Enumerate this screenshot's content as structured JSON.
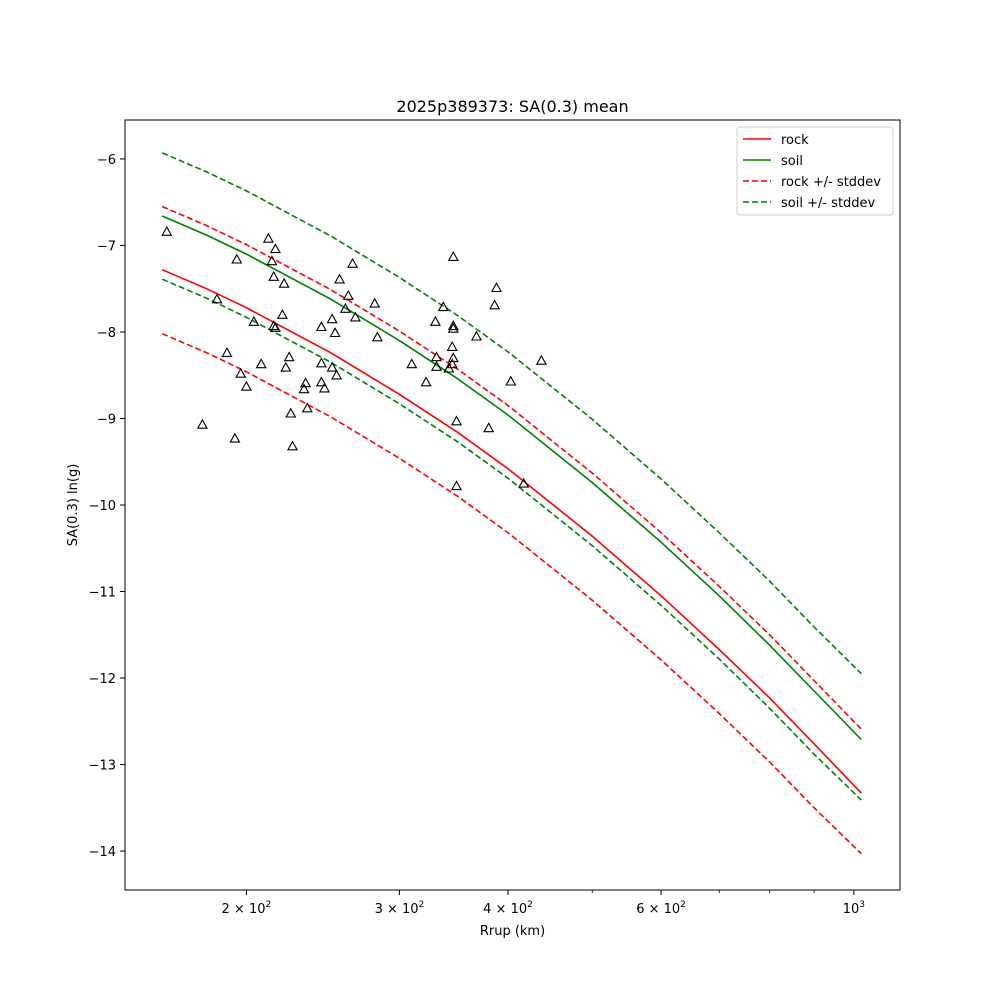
{
  "chart_data": {
    "type": "line",
    "title": "2025p389373: SA(0.3) mean",
    "xlabel": "Rrup (km)",
    "ylabel": "SA(0.3) ln(g)",
    "x_scale": "log",
    "xlim": [
      145,
      1130
    ],
    "ylim": [
      -14.45,
      -5.55
    ],
    "x_ticks": [
      {
        "value": 200,
        "base": "2 × 10",
        "exp": "2"
      },
      {
        "value": 300,
        "base": "3 × 10",
        "exp": "2"
      },
      {
        "value": 400,
        "base": "4 × 10",
        "exp": "2"
      },
      {
        "value": 600,
        "base": "6 × 10",
        "exp": "2"
      },
      {
        "value": 1000,
        "base": "10",
        "exp": "3"
      }
    ],
    "x_minor_ticks": [
      500,
      700,
      800,
      900
    ],
    "y_ticks": [
      {
        "value": -6,
        "label": "−6"
      },
      {
        "value": -7,
        "label": "−7"
      },
      {
        "value": -8,
        "label": "−8"
      },
      {
        "value": -9,
        "label": "−9"
      },
      {
        "value": -10,
        "label": "−10"
      },
      {
        "value": -11,
        "label": "−11"
      },
      {
        "value": -12,
        "label": "−12"
      },
      {
        "value": -13,
        "label": "−13"
      },
      {
        "value": -14,
        "label": "−14"
      }
    ],
    "legend_position": "top-right",
    "grid": false,
    "x": [
      160,
      180,
      200,
      250,
      300,
      350,
      400,
      500,
      600,
      700,
      800,
      900,
      1020
    ],
    "series": [
      {
        "name": "rock",
        "color": "#ff0000",
        "style": "solid",
        "y": [
          -7.28,
          -7.5,
          -7.72,
          -8.24,
          -8.72,
          -9.16,
          -9.58,
          -10.36,
          -11.05,
          -11.67,
          -12.23,
          -12.76,
          -13.33
        ]
      },
      {
        "name": "soil",
        "color": "#008000",
        "style": "solid",
        "y": [
          -6.66,
          -6.88,
          -7.1,
          -7.62,
          -8.1,
          -8.54,
          -8.96,
          -9.74,
          -10.43,
          -11.05,
          -11.62,
          -12.15,
          -12.71
        ]
      },
      {
        "name": "rock +/- stddev",
        "color": "#ff0000",
        "style": "dashed",
        "upper": [
          -6.55,
          -6.77,
          -6.99,
          -7.51,
          -7.99,
          -8.43,
          -8.85,
          -9.63,
          -10.32,
          -10.94,
          -11.5,
          -12.03,
          -12.59
        ],
        "lower": [
          -8.02,
          -8.24,
          -8.46,
          -8.98,
          -9.46,
          -9.9,
          -10.32,
          -11.1,
          -11.79,
          -12.41,
          -12.97,
          -13.5,
          -14.03
        ]
      },
      {
        "name": "soil +/- stddev",
        "color": "#008000",
        "style": "dashed",
        "upper": [
          -5.93,
          -6.15,
          -6.37,
          -6.89,
          -7.37,
          -7.81,
          -8.23,
          -9.01,
          -9.7,
          -10.32,
          -10.88,
          -11.41,
          -11.95
        ],
        "lower": [
          -7.39,
          -7.61,
          -7.83,
          -8.35,
          -8.83,
          -9.27,
          -9.69,
          -10.47,
          -11.16,
          -11.78,
          -12.35,
          -12.88,
          -13.41
        ]
      }
    ],
    "observations": [
      [
        162,
        -6.84
      ],
      [
        178,
        -9.07
      ],
      [
        185,
        -7.62
      ],
      [
        190,
        -8.24
      ],
      [
        194,
        -9.23
      ],
      [
        195,
        -7.16
      ],
      [
        197,
        -8.48
      ],
      [
        200,
        -8.63
      ],
      [
        204,
        -7.88
      ],
      [
        208,
        -8.37
      ],
      [
        212,
        -6.92
      ],
      [
        214,
        -7.18
      ],
      [
        215,
        -7.93
      ],
      [
        215,
        -7.36
      ],
      [
        216,
        -7.04
      ],
      [
        216,
        -7.95
      ],
      [
        220,
        -7.8
      ],
      [
        221,
        -7.44
      ],
      [
        222,
        -8.41
      ],
      [
        224,
        -8.29
      ],
      [
        225,
        -8.94
      ],
      [
        226,
        -9.32
      ],
      [
        233,
        -8.66
      ],
      [
        234,
        -8.59
      ],
      [
        235,
        -8.88
      ],
      [
        244,
        -8.36
      ],
      [
        244,
        -8.58
      ],
      [
        244,
        -7.94
      ],
      [
        246,
        -8.65
      ],
      [
        251,
        -8.41
      ],
      [
        251,
        -7.85
      ],
      [
        253,
        -8.01
      ],
      [
        254,
        -8.5
      ],
      [
        256,
        -7.39
      ],
      [
        260,
        -7.73
      ],
      [
        262,
        -7.58
      ],
      [
        265,
        -7.21
      ],
      [
        267,
        -7.83
      ],
      [
        281,
        -7.67
      ],
      [
        283,
        -8.06
      ],
      [
        310,
        -8.37
      ],
      [
        322,
        -8.58
      ],
      [
        330,
        -7.88
      ],
      [
        331,
        -8.29
      ],
      [
        331,
        -8.4
      ],
      [
        337,
        -7.71
      ],
      [
        342,
        -8.42
      ],
      [
        345,
        -8.17
      ],
      [
        345,
        -8.37
      ],
      [
        346,
        -7.13
      ],
      [
        346,
        -7.96
      ],
      [
        346,
        -7.93
      ],
      [
        346,
        -8.3
      ],
      [
        349,
        -9.78
      ],
      [
        349,
        -9.03
      ],
      [
        368,
        -8.05
      ],
      [
        380,
        -9.11
      ],
      [
        386,
        -7.69
      ],
      [
        388,
        -7.49
      ],
      [
        403,
        -8.57
      ],
      [
        417,
        -9.75
      ],
      [
        437,
        -8.33
      ]
    ]
  }
}
